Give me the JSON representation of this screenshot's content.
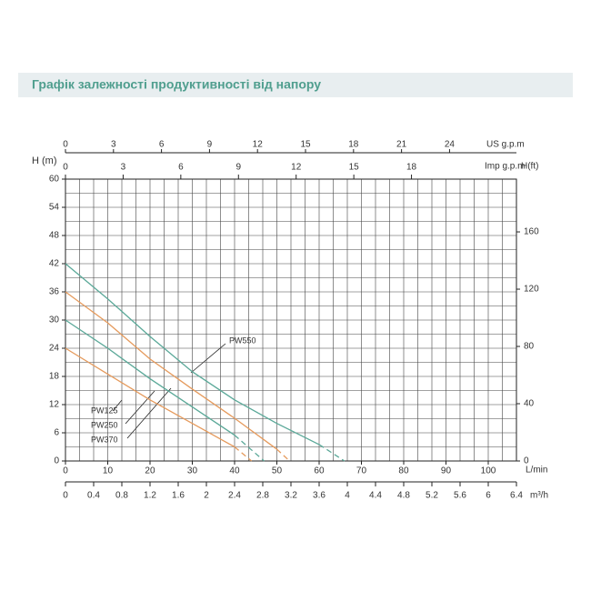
{
  "chart_data": {
    "type": "line",
    "title": "Графік залежності продуктивності від напору",
    "x_label": "L/min",
    "y_label": "H (m)",
    "xlim": [
      0,
      106.67
    ],
    "xticks": [
      0,
      10,
      20,
      30,
      40,
      50,
      60,
      70,
      80,
      90,
      100
    ],
    "ylim": [
      0,
      60
    ],
    "yticks": [
      0,
      6,
      12,
      18,
      24,
      30,
      36,
      42,
      48,
      54,
      60
    ],
    "ygrid": [
      0,
      3,
      6,
      9,
      12,
      15,
      18,
      21,
      24,
      27,
      30,
      33,
      36,
      39,
      42,
      45,
      48,
      51,
      54,
      57,
      60
    ],
    "grid": true,
    "x2": {
      "label": "m³/h",
      "lim": [
        0,
        6.4
      ],
      "ticks": [
        0,
        0.4,
        0.8,
        1.2,
        1.6,
        2,
        2.4,
        2.8,
        3.2,
        3.6,
        4,
        4.4,
        4.8,
        5.2,
        5.6,
        6,
        6.4
      ],
      "gridticks": [
        0,
        0.2,
        0.4,
        0.6,
        0.8,
        1,
        1.2,
        1.4,
        1.6,
        1.8,
        2,
        2.2,
        2.4,
        2.6,
        2.8,
        3,
        3.2,
        3.4,
        3.6,
        3.8,
        4,
        4.2,
        4.4,
        4.6,
        4.8,
        5,
        5.2,
        5.4,
        5.6,
        5.8,
        6,
        6.2,
        6.4
      ]
    },
    "x3": {
      "label": "US g.p.m",
      "lim": [
        0,
        28.18
      ],
      "ticks": [
        0,
        3,
        6,
        9,
        12,
        15,
        18,
        21,
        24
      ]
    },
    "x4": {
      "label": "Imp g.p.m",
      "lim": [
        0,
        23.46
      ],
      "ticks": [
        0,
        3,
        6,
        9,
        12,
        15,
        18
      ]
    },
    "y2_label": "H(ft)",
    "y2lim": [
      0,
      196.85
    ],
    "y2ticks": [
      0,
      40,
      80,
      120,
      160
    ],
    "series": [
      {
        "name": "PW125",
        "color": "#e59a5c",
        "x": [
          0,
          10,
          20,
          30,
          40,
          44
        ],
        "values": [
          24,
          18.5,
          13,
          8,
          3,
          0
        ],
        "dash_from": 40
      },
      {
        "name": "PW250",
        "color": "#5aa898",
        "x": [
          0,
          10,
          20,
          30,
          40,
          47
        ],
        "values": [
          30,
          24,
          17.5,
          11.5,
          5.5,
          0
        ],
        "dash_from": 40
      },
      {
        "name": "PW370",
        "color": "#e59a5c",
        "x": [
          0,
          10,
          20,
          30,
          40,
          50,
          53
        ],
        "values": [
          36,
          29.4,
          21.7,
          15.3,
          9.1,
          2.5,
          0
        ],
        "dash_from": 50
      },
      {
        "name": "PW550",
        "color": "#5aa898",
        "x": [
          0,
          10,
          20,
          30,
          40,
          50,
          60,
          66
        ],
        "values": [
          42,
          34.5,
          26.5,
          19,
          13,
          8,
          3.5,
          0
        ],
        "dash_from": 60
      }
    ]
  }
}
